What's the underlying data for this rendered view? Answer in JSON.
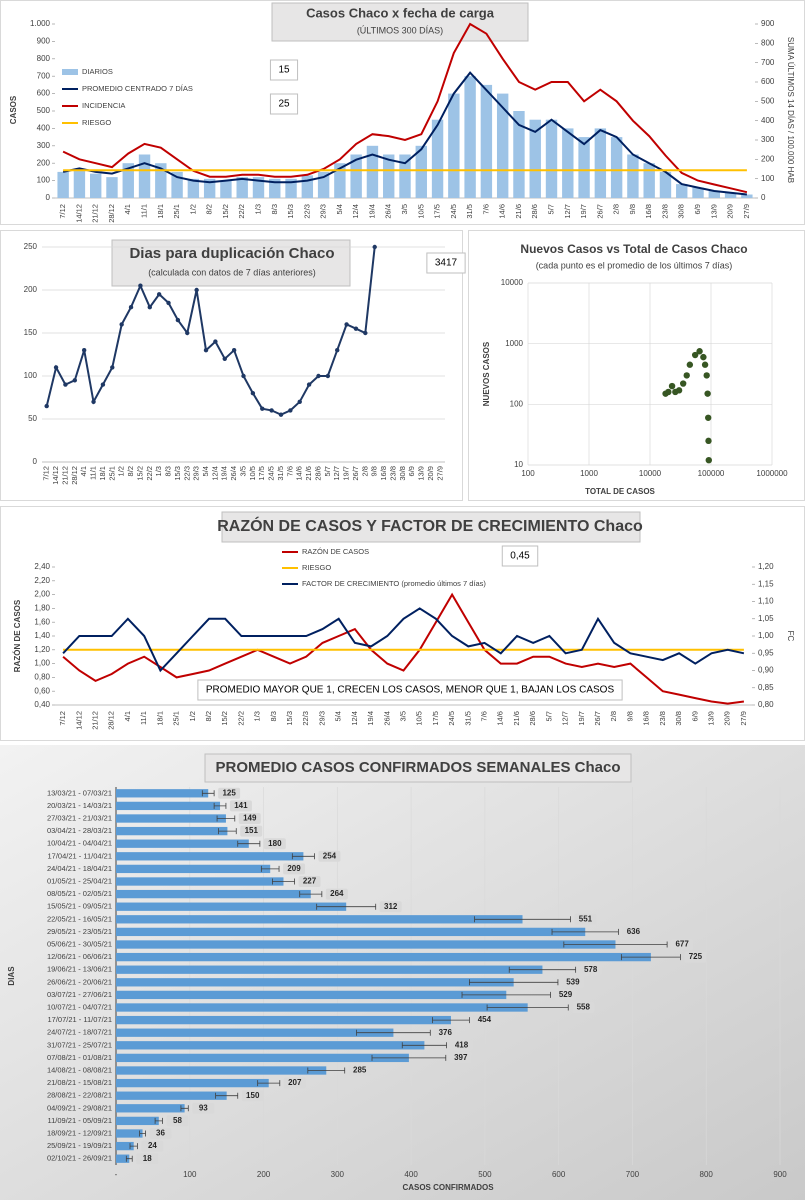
{
  "chart_data": [
    {
      "type": "combo",
      "title": "Casos  Chaco  x fecha de carga",
      "subtitle": "(ÚLTIMOS 300 DÍAS)",
      "y_label": "CASOS",
      "y2_label": "SUMA  ÚLTIMOS 14 DÍAS / 100.000 HAB",
      "annotations": [
        "15",
        "25"
      ],
      "legend": "upper left",
      "grid": false,
      "categories": [
        "7/12",
        "14/12",
        "21/12",
        "28/12",
        "4/1",
        "11/1",
        "18/1",
        "25/1",
        "1/2",
        "8/2",
        "15/2",
        "22/2",
        "1/3",
        "8/3",
        "15/3",
        "22/3",
        "29/3",
        "5/4",
        "12/4",
        "19/4",
        "26/4",
        "3/5",
        "10/5",
        "17/5",
        "24/5",
        "31/5",
        "7/6",
        "14/6",
        "21/6",
        "28/6",
        "5/7",
        "12/7",
        "19/7",
        "26/7",
        "2/8",
        "9/8",
        "16/8",
        "23/8",
        "30/8",
        "6/9",
        "13/9",
        "20/9",
        "27/9"
      ],
      "series": [
        {
          "name": "DIARIOS",
          "kind": "bar",
          "color": "#9dc3e6",
          "values": [
            150,
            160,
            140,
            120,
            200,
            250,
            200,
            150,
            110,
            110,
            100,
            120,
            120,
            110,
            110,
            130,
            150,
            200,
            250,
            300,
            250,
            250,
            300,
            450,
            600,
            700,
            650,
            600,
            500,
            450,
            450,
            400,
            350,
            400,
            350,
            250,
            200,
            150,
            80,
            60,
            40,
            30,
            20
          ]
        },
        {
          "name": "PROMEDIO CENTRADO 7 DÍAS",
          "kind": "line",
          "color": "#002060",
          "values": [
            150,
            170,
            150,
            140,
            170,
            200,
            170,
            120,
            100,
            90,
            100,
            110,
            100,
            90,
            90,
            100,
            120,
            170,
            220,
            250,
            220,
            200,
            280,
            420,
            600,
            720,
            620,
            520,
            420,
            380,
            450,
            380,
            310,
            390,
            350,
            250,
            200,
            150,
            80,
            60,
            40,
            30,
            20
          ]
        },
        {
          "name": "INCIDENCIA",
          "kind": "line",
          "color": "#c00000",
          "axis": "y2",
          "values": [
            240,
            200,
            180,
            160,
            230,
            280,
            260,
            200,
            140,
            110,
            110,
            120,
            120,
            110,
            110,
            120,
            150,
            200,
            280,
            330,
            320,
            300,
            330,
            500,
            750,
            900,
            850,
            720,
            600,
            560,
            600,
            600,
            500,
            560,
            500,
            400,
            320,
            220,
            130,
            90,
            70,
            50,
            30
          ]
        },
        {
          "name": "RIESGO",
          "kind": "line",
          "color": "#ffc000",
          "values": [
            160,
            160,
            160,
            160,
            160,
            160,
            160,
            160,
            160,
            160,
            160,
            160,
            160,
            160,
            160,
            160,
            160,
            160,
            160,
            160,
            160,
            160,
            160,
            160,
            160,
            160,
            160,
            160,
            160,
            160,
            160,
            160,
            160,
            160,
            160,
            160,
            160,
            160,
            160,
            160,
            160,
            160,
            160
          ]
        }
      ],
      "ylim": [
        0,
        1000
      ],
      "yticks": [
        0,
        100,
        200,
        300,
        400,
        500,
        600,
        700,
        800,
        900,
        {
          "value": 1000,
          "label": "1.000"
        }
      ],
      "y2lim": [
        0,
        900
      ],
      "y2ticks": [
        0,
        100,
        200,
        300,
        400,
        500,
        600,
        700,
        800,
        900
      ]
    },
    {
      "type": "line",
      "title": "Dias para duplicación Chaco",
      "subtitle": "(calculada con datos de 7 días anteriores)",
      "annotations": [
        "3417"
      ],
      "grid": true,
      "categories": [
        "7/12",
        "14/12",
        "21/12",
        "28/12",
        "4/1",
        "11/1",
        "18/1",
        "25/1",
        "1/2",
        "8/2",
        "15/2",
        "22/2",
        "1/3",
        "8/3",
        "15/3",
        "22/3",
        "29/3",
        "5/4",
        "12/4",
        "19/4",
        "26/4",
        "3/5",
        "10/5",
        "17/5",
        "24/5",
        "31/5",
        "7/6",
        "14/6",
        "21/6",
        "28/6",
        "5/7",
        "12/7",
        "19/7",
        "26/7",
        "2/8",
        "9/8",
        "16/8",
        "23/8",
        "30/8",
        "6/9",
        "13/9",
        "20/9",
        "27/9"
      ],
      "series": [
        {
          "color": "#1f3864",
          "markers": true,
          "values": [
            65,
            110,
            90,
            95,
            130,
            70,
            90,
            110,
            160,
            180,
            205,
            180,
            195,
            185,
            165,
            150,
            200,
            130,
            140,
            120,
            130,
            100,
            80,
            62,
            60,
            55,
            60,
            70,
            90,
            100,
            100,
            130,
            160,
            155,
            150,
            250,
            null,
            null,
            null,
            null,
            null,
            null,
            null
          ]
        }
      ],
      "ylim": [
        0,
        250
      ],
      "yticks": [
        0,
        50,
        100,
        150,
        200,
        250
      ]
    },
    {
      "type": "scatter",
      "title": "Nuevos Casos vs Total de Casos Chaco",
      "subtitle": "(cada punto es el promedio de los últimos 7 días)",
      "x_label": "TOTAL DE CASOS",
      "y_label": "NUEVOS  CASOS",
      "log_x": true,
      "log_y": true,
      "grid": true,
      "color": "#375623",
      "x": [
        18000,
        20000,
        23000,
        26000,
        30000,
        35000,
        40000,
        45000,
        55000,
        65000,
        75000,
        80000,
        85000,
        88000,
        90000,
        91000,
        92000
      ],
      "y": [
        150,
        160,
        200,
        160,
        170,
        220,
        300,
        450,
        650,
        750,
        600,
        450,
        300,
        150,
        60,
        25,
        12
      ],
      "xlim": [
        100,
        1000000
      ],
      "xticks": [
        100,
        1000,
        10000,
        100000,
        1000000
      ],
      "ylim": [
        10,
        10000
      ],
      "yticks": [
        10,
        100,
        1000,
        10000
      ]
    },
    {
      "type": "combo",
      "title": "RAZÓN DE CASOS Y FACTOR DE CRECIMIENTO Chaco",
      "y_label": "RAZÓN DE CASOS",
      "y2_label": "FC",
      "annotations": [
        "0,45",
        "PROMEDIO MAYOR QUE 1, CRECEN LOS CASOS, MENOR QUE 1, BAJAN LOS CASOS"
      ],
      "legend": "upper center",
      "grid": false,
      "categories": [
        "7/12",
        "14/12",
        "21/12",
        "28/12",
        "4/1",
        "11/1",
        "18/1",
        "25/1",
        "1/2",
        "8/2",
        "15/2",
        "22/2",
        "1/3",
        "8/3",
        "15/3",
        "22/3",
        "29/3",
        "5/4",
        "12/4",
        "19/4",
        "26/4",
        "3/5",
        "10/5",
        "17/5",
        "24/5",
        "31/5",
        "7/6",
        "14/6",
        "21/6",
        "28/6",
        "5/7",
        "12/7",
        "19/7",
        "26/7",
        "2/8",
        "9/8",
        "16/8",
        "23/8",
        "30/8",
        "6/9",
        "13/9",
        "20/9",
        "27/9"
      ],
      "series": [
        {
          "name": "RAZÓN DE CASOS",
          "kind": "line",
          "color": "#c00000",
          "values": [
            1.1,
            0.9,
            0.75,
            0.85,
            1.0,
            1.1,
            0.95,
            0.8,
            0.85,
            0.9,
            1.0,
            1.1,
            1.2,
            1.1,
            1.0,
            1.1,
            1.3,
            1.4,
            1.5,
            1.2,
            1.0,
            0.9,
            1.2,
            1.6,
            2.0,
            1.6,
            1.2,
            1.0,
            1.0,
            1.1,
            1.1,
            1.0,
            0.95,
            1.0,
            0.95,
            1.0,
            0.8,
            0.6,
            0.55,
            0.5,
            0.45,
            0.42,
            0.45
          ]
        },
        {
          "name": "RIESGO",
          "kind": "line",
          "color": "#ffc000",
          "values": [
            1.2,
            1.2,
            1.2,
            1.2,
            1.2,
            1.2,
            1.2,
            1.2,
            1.2,
            1.2,
            1.2,
            1.2,
            1.2,
            1.2,
            1.2,
            1.2,
            1.2,
            1.2,
            1.2,
            1.2,
            1.2,
            1.2,
            1.2,
            1.2,
            1.2,
            1.2,
            1.2,
            1.2,
            1.2,
            1.2,
            1.2,
            1.2,
            1.2,
            1.2,
            1.2,
            1.2,
            1.2,
            1.2,
            1.2,
            1.2,
            1.2,
            1.2,
            1.2
          ]
        },
        {
          "name": "FACTOR DE CRECIMIENTO (promedio últimos 7 días)",
          "kind": "line",
          "color": "#002060",
          "axis": "y2",
          "values": [
            0.95,
            1.0,
            1.0,
            1.0,
            1.05,
            1.0,
            0.9,
            0.95,
            1.0,
            1.05,
            1.05,
            1.0,
            1.0,
            1.0,
            1.0,
            1.0,
            1.02,
            1.05,
            0.98,
            0.97,
            1.0,
            1.05,
            1.08,
            1.05,
            1.0,
            0.97,
            0.98,
            0.95,
            1.0,
            0.98,
            1.0,
            0.95,
            0.96,
            1.05,
            0.98,
            0.95,
            0.94,
            0.93,
            0.95,
            0.92,
            0.95,
            0.96,
            0.95
          ]
        }
      ],
      "ylim": [
        0.4,
        2.4
      ],
      "yticks": [
        {
          "value": 0.4,
          "label": "0,40"
        },
        {
          "value": 0.6,
          "label": "0,60"
        },
        {
          "value": 0.8,
          "label": "0,80"
        },
        {
          "value": 1.0,
          "label": "1,00"
        },
        {
          "value": 1.2,
          "label": "1,20"
        },
        {
          "value": 1.4,
          "label": "1,40"
        },
        {
          "value": 1.6,
          "label": "1,60"
        },
        {
          "value": 1.8,
          "label": "1,80"
        },
        {
          "value": 2.0,
          "label": "2,00"
        },
        {
          "value": 2.2,
          "label": "2,20"
        },
        {
          "value": 2.4,
          "label": "2,40"
        }
      ],
      "y2lim": [
        0.8,
        1.2
      ],
      "y2ticks": [
        {
          "value": 0.8,
          "label": "0,80"
        },
        {
          "value": 0.85,
          "label": "0,85"
        },
        {
          "value": 0.9,
          "label": "0,90"
        },
        {
          "value": 0.95,
          "label": "0,95"
        },
        {
          "value": 1.0,
          "label": "1,00"
        },
        {
          "value": 1.05,
          "label": "1,05"
        },
        {
          "value": 1.1,
          "label": "1,10"
        },
        {
          "value": 1.15,
          "label": "1,15"
        },
        {
          "value": 1.2,
          "label": "1,20"
        }
      ]
    },
    {
      "type": "bar",
      "orientation": "horizontal",
      "title": "PROMEDIO CASOS CONFIRMADOS SEMANALES Chaco",
      "x_label": "CASOS CONFIRMADOS",
      "y_label": "DIAS",
      "color": "#5b9bd5",
      "grid": true,
      "categories": [
        "13/03/21 - 07/03/21",
        "20/03/21 - 14/03/21",
        "27/03/21 - 21/03/21",
        "03/04/21 - 28/03/21",
        "10/04/21 - 04/04/21",
        "17/04/21 - 11/04/21",
        "24/04/21 - 18/04/21",
        "01/05/21 - 25/04/21",
        "08/05/21 - 02/05/21",
        "15/05/21 - 09/05/21",
        "22/05/21 - 16/05/21",
        "29/05/21 - 23/05/21",
        "05/06/21 - 30/05/21",
        "12/06/21 - 06/06/21",
        "19/06/21 - 13/06/21",
        "26/06/21 - 20/06/21",
        "03/07/21 - 27/06/21",
        "10/07/21 - 04/07/21",
        "17/07/21 - 11/07/21",
        "24/07/21 - 18/07/21",
        "31/07/21 - 25/07/21",
        "07/08/21 - 01/08/21",
        "14/08/21 - 08/08/21",
        "21/08/21 - 15/08/21",
        "28/08/21 - 22/08/21",
        "04/09/21 - 29/08/21",
        "11/09/21 - 05/09/21",
        "18/09/21 - 12/09/21",
        "25/09/21 - 19/09/21",
        "02/10/21 - 26/09/21"
      ],
      "values": [
        125,
        141,
        149,
        151,
        180,
        254,
        209,
        227,
        264,
        312,
        551,
        636,
        677,
        725,
        578,
        539,
        529,
        558,
        454,
        376,
        418,
        397,
        285,
        207,
        150,
        93,
        58,
        36,
        24,
        18
      ],
      "errors": [
        8,
        8,
        12,
        12,
        15,
        15,
        12,
        15,
        15,
        40,
        65,
        45,
        70,
        40,
        45,
        60,
        60,
        55,
        25,
        50,
        30,
        50,
        25,
        15,
        15,
        5,
        5,
        4,
        5,
        4
      ],
      "xlim": [
        0,
        900
      ],
      "xticks": [
        {
          "value": 0,
          "label": "-"
        },
        100,
        200,
        300,
        400,
        500,
        600,
        700,
        800,
        900
      ]
    }
  ]
}
